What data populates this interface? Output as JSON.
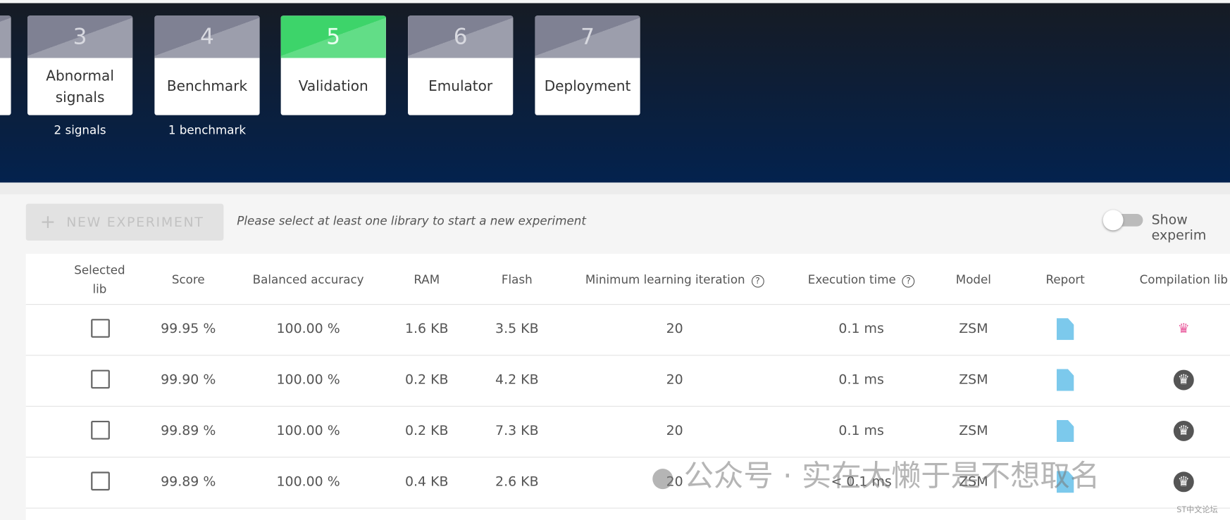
{
  "steps": [
    {
      "number": "3",
      "label": "Abnormal signals",
      "note": "2 signals"
    },
    {
      "number": "4",
      "label": "Benchmark",
      "note": "1 benchmark"
    },
    {
      "number": "5",
      "label": "Validation"
    },
    {
      "number": "6",
      "label": "Emulator"
    },
    {
      "number": "7",
      "label": "Deployment"
    }
  ],
  "toolbar": {
    "button": "NEW EXPERIMENT",
    "hint": "Please select at least one library to start a new experiment",
    "toggle": "Show experim"
  },
  "table": {
    "headers": [
      "Selected lib",
      "Score",
      "Balanced accuracy",
      "RAM",
      "Flash",
      "Minimum learning iteration",
      "Execution time",
      "Model",
      "Report",
      "Compilation lib"
    ],
    "rows": [
      [
        "99.95 %",
        "100.00 %",
        "1.6 KB",
        "3.5 KB",
        "20",
        "0.1 ms",
        "ZSM"
      ],
      [
        "99.90 %",
        "100.00 %",
        "0.2 KB",
        "4.2 KB",
        "20",
        "0.1 ms",
        "ZSM"
      ],
      [
        "99.89 %",
        "100.00 %",
        "0.2 KB",
        "7.3 KB",
        "20",
        "0.1 ms",
        "ZSM"
      ],
      [
        "99.89 %",
        "100.00 %",
        "0.4 KB",
        "2.6 KB",
        "20",
        "< 0.1 ms",
        "ZSM"
      ]
    ]
  },
  "watermark": {
    "text": "公众号 · 实在太懒于是不想取名",
    "logo": "ST中文论坛"
  }
}
